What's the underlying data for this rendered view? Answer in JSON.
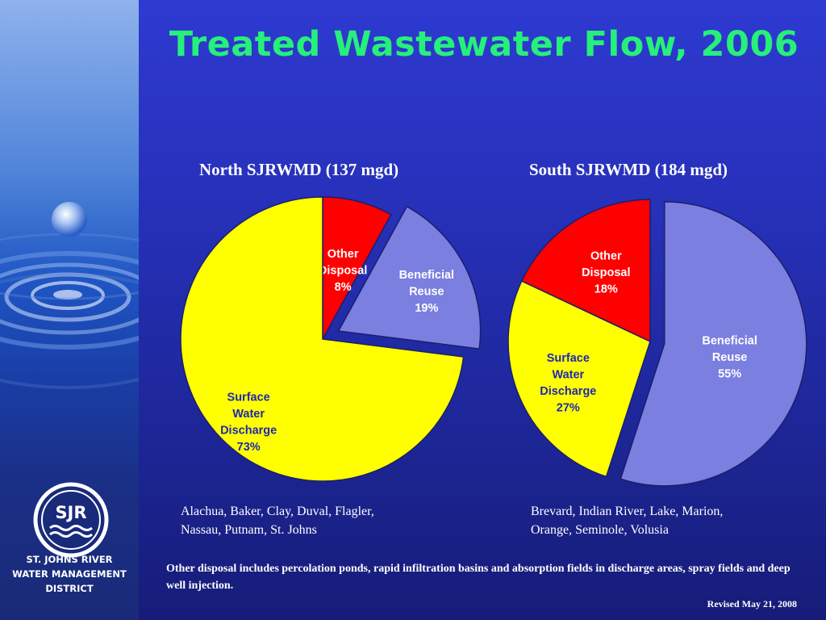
{
  "title": "Treated Wastewater Flow, 2006",
  "colors": {
    "yellow": "#ffff00",
    "red": "#ff0000",
    "lavender": "#7b7fe0",
    "title_green": "#26f07a"
  },
  "chart_data": [
    {
      "type": "pie",
      "title": "North SJRWMD (137 mgd)",
      "slices": [
        {
          "label": [
            "Other",
            "Disposal"
          ],
          "value": 8,
          "pct_label": "8%",
          "color": "#ff0000",
          "label_color": "#ffffff",
          "exploded": false
        },
        {
          "label": [
            "Beneficial",
            "Reuse"
          ],
          "value": 19,
          "pct_label": "19%",
          "color": "#7b7fe0",
          "label_color": "#ffffff",
          "exploded": true
        },
        {
          "label": [
            "Surface",
            "Water",
            "Discharge"
          ],
          "value": 73,
          "pct_label": "73%",
          "color": "#ffff00",
          "label_color": "#1e28b4",
          "exploded": false
        }
      ]
    },
    {
      "type": "pie",
      "title": "South SJRWMD (184 mgd)",
      "slices": [
        {
          "label": [
            "Beneficial",
            "Reuse"
          ],
          "value": 55,
          "pct_label": "55%",
          "color": "#7b7fe0",
          "label_color": "#ffffff",
          "exploded": true
        },
        {
          "label": [
            "Surface",
            "Water",
            "Discharge"
          ],
          "value": 27,
          "pct_label": "27%",
          "color": "#ffff00",
          "label_color": "#1e28b4",
          "exploded": false
        },
        {
          "label": [
            "Other",
            "Disposal"
          ],
          "value": 18,
          "pct_label": "18%",
          "color": "#ff0000",
          "label_color": "#ffffff",
          "exploded": false
        }
      ]
    }
  ],
  "north_counties": [
    "Alachua, Baker, Clay, Duval, Flagler,",
    "Nassau, Putnam, St. Johns"
  ],
  "south_counties": [
    "Brevard, Indian River, Lake, Marion,",
    "Orange, Seminole, Volusia"
  ],
  "footnote": "Other disposal includes percolation ponds, rapid infiltration basins and absorption fields in discharge areas, spray fields and deep well injection.",
  "revised": "Revised May 21, 2008",
  "org": {
    "logo_text": "SJR",
    "name_lines": [
      "ST. JOHNS RIVER",
      "WATER MANAGEMENT",
      "DISTRICT"
    ]
  }
}
